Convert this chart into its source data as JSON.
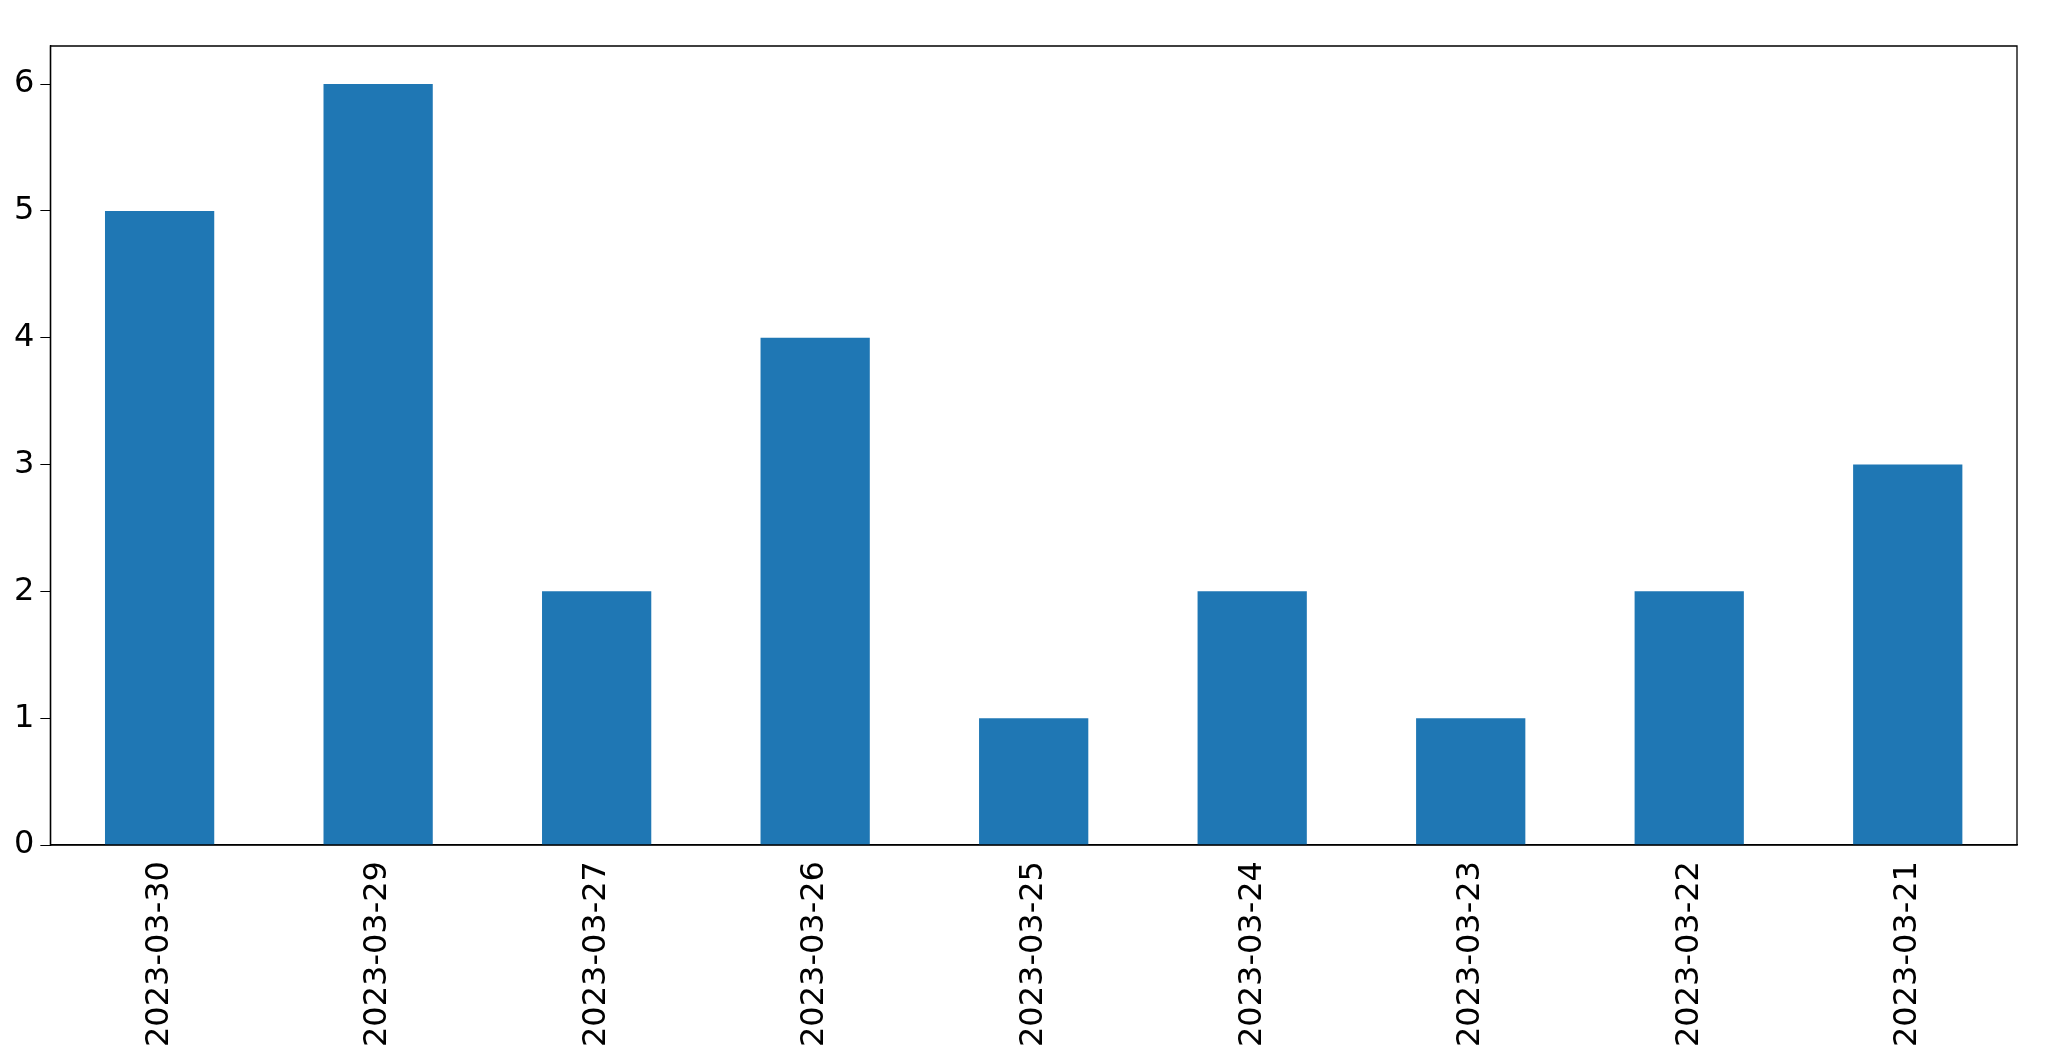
{
  "chart_data": {
    "type": "bar",
    "categories": [
      "2023-03-30",
      "2023-03-29",
      "2023-03-27",
      "2023-03-26",
      "2023-03-25",
      "2023-03-24",
      "2023-03-23",
      "2023-03-22",
      "2023-03-21"
    ],
    "values": [
      5,
      6,
      2,
      4,
      1,
      2,
      1,
      2,
      3
    ],
    "color": "#1f77b4",
    "ylim": [
      0,
      6.3
    ],
    "yticks": [
      0,
      1,
      2,
      3,
      4,
      5,
      6
    ],
    "grid": false,
    "legend": false
  }
}
